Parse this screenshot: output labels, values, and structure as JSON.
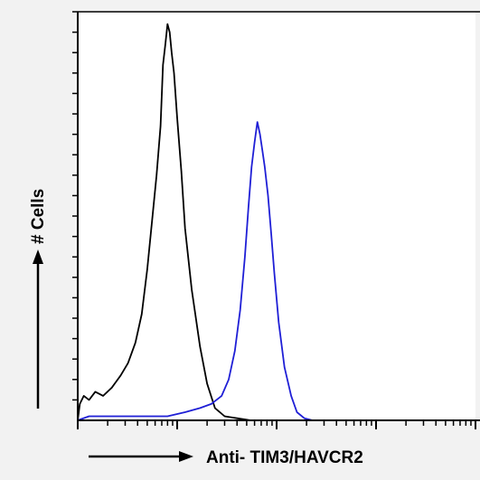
{
  "chart_data": {
    "type": "line",
    "title": "",
    "xlabel": "Anti- TIM3/HAVCR2",
    "ylabel": "# Cells",
    "x_scale": "log",
    "xlim": [
      1,
      10000
    ],
    "ylim": [
      0,
      100
    ],
    "grid": false,
    "legend": "none",
    "colors": {
      "background": "#f2f2f2",
      "plot_bg": "#ffffff",
      "axis": "#000000"
    },
    "series": [
      {
        "color": "#000000",
        "x": [
          1,
          1.05,
          1.15,
          1.3,
          1.5,
          1.8,
          2.2,
          2.7,
          3.2,
          3.8,
          4.4,
          5.0,
          5.6,
          6.2,
          6.8,
          7.2,
          7.6,
          8.0,
          8.4,
          8.8,
          9.3,
          10,
          11,
          12,
          14,
          17,
          20,
          24,
          30,
          40,
          55,
          80
        ],
        "y": [
          0,
          4,
          6,
          5,
          7,
          6,
          8,
          11,
          14,
          19,
          26,
          37,
          49,
          60,
          72,
          87,
          92,
          97,
          95,
          90,
          85,
          74,
          61,
          47,
          32,
          18,
          9,
          3,
          1,
          0.5,
          0,
          0
        ]
      },
      {
        "color": "#1f1fd6",
        "x": [
          1,
          1.3,
          2,
          3,
          5,
          8,
          12,
          17,
          22,
          28,
          33,
          38,
          43,
          48,
          52,
          56,
          60,
          64,
          68,
          72,
          76,
          82,
          88,
          95,
          105,
          120,
          140,
          160,
          190,
          230
        ],
        "y": [
          0,
          1,
          1,
          1,
          1,
          1,
          2,
          3,
          4,
          6,
          10,
          17,
          27,
          40,
          52,
          62,
          68,
          73,
          70,
          66,
          62,
          55,
          46,
          36,
          24,
          13,
          6,
          2,
          0.5,
          0
        ]
      }
    ]
  }
}
